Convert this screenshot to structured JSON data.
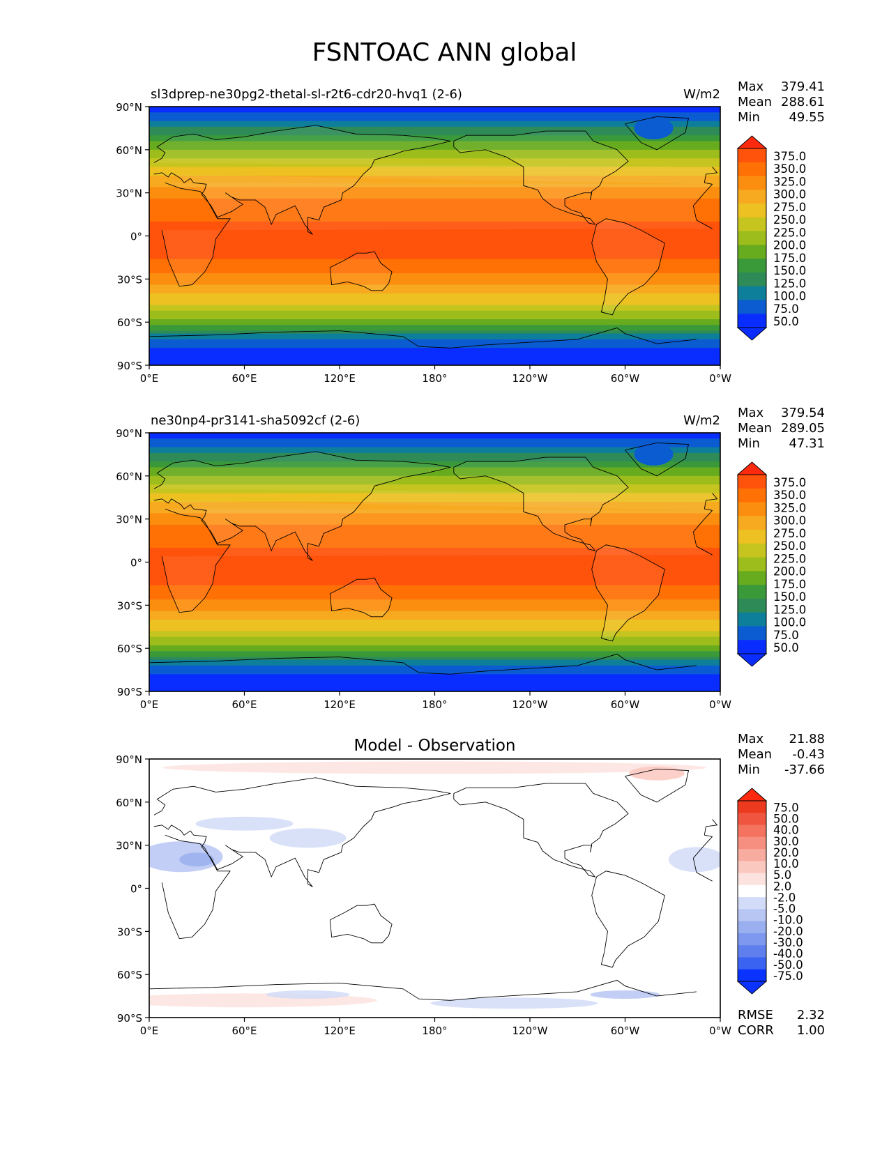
{
  "figure": {
    "title": "FSNTOAC ANN global"
  },
  "lon_ticks": [
    "0°E",
    "60°E",
    "120°E",
    "180°",
    "120°W",
    "60°W",
    "0°W"
  ],
  "lat_ticks": [
    "90°N",
    "60°N",
    "30°N",
    "0°",
    "30°S",
    "60°S",
    "90°S"
  ],
  "panels": [
    {
      "title_left": "sl3dprep-ne30pg2-thetal-sl-r2t6-cdr20-hvq1 (2-6)",
      "title_center": "",
      "units": "W/m2",
      "stats": [
        {
          "label": "Max",
          "value": "379.41"
        },
        {
          "label": "Mean",
          "value": "288.61"
        },
        {
          "label": "Min",
          "value": "49.55"
        }
      ],
      "colorbar_labels": [
        "375.0",
        "350.0",
        "325.0",
        "300.0",
        "275.0",
        "250.0",
        "225.0",
        "200.0",
        "175.0",
        "150.0",
        "125.0",
        "100.0",
        "75.0",
        "50.0"
      ],
      "extra_stats": []
    },
    {
      "title_left": "ne30np4-pr3141-sha5092cf (2-6)",
      "title_center": "",
      "units": "W/m2",
      "stats": [
        {
          "label": "Max",
          "value": "379.54"
        },
        {
          "label": "Mean",
          "value": "289.05"
        },
        {
          "label": "Min",
          "value": "47.31"
        }
      ],
      "colorbar_labels": [
        "375.0",
        "350.0",
        "325.0",
        "300.0",
        "275.0",
        "250.0",
        "225.0",
        "200.0",
        "175.0",
        "150.0",
        "125.0",
        "100.0",
        "75.0",
        "50.0"
      ],
      "extra_stats": []
    },
    {
      "title_left": "",
      "title_center": "Model - Observation",
      "units": "",
      "stats": [
        {
          "label": "Max",
          "value": "21.88"
        },
        {
          "label": "Mean",
          "value": "-0.43"
        },
        {
          "label": "Min",
          "value": "-37.66"
        }
      ],
      "colorbar_labels": [
        "75.0",
        "50.0",
        "40.0",
        "30.0",
        "20.0",
        "10.0",
        "5.0",
        "2.0",
        "-2.0",
        "-5.0",
        "-10.0",
        "-20.0",
        "-30.0",
        "-40.0",
        "-50.0",
        "-75.0"
      ],
      "extra_stats": [
        {
          "label": "RMSE",
          "value": "2.32"
        },
        {
          "label": "CORR",
          "value": "1.00"
        }
      ]
    }
  ],
  "chart_data": [
    {
      "type": "heatmap",
      "title": "sl3dprep-ne30pg2-thetal-sl-r2t6-cdr20-hvq1 (2-6)",
      "units": "W/m2",
      "xlabel": "",
      "ylabel": "",
      "x_ticks": [
        "0°E",
        "60°E",
        "120°E",
        "180°",
        "120°W",
        "60°W",
        "0°W"
      ],
      "y_ticks": [
        "90°N",
        "60°N",
        "30°N",
        "0°",
        "30°S",
        "60°S",
        "90°S"
      ],
      "xlim": [
        0,
        360
      ],
      "ylim": [
        -90,
        90
      ],
      "zonal_profile": {
        "lat": [
          90,
          75,
          60,
          45,
          30,
          15,
          0,
          -15,
          -30,
          -45,
          -60,
          -75,
          -90
        ],
        "value": [
          60,
          125,
          200,
          265,
          315,
          345,
          360,
          350,
          315,
          260,
          190,
          80,
          50
        ]
      },
      "levels": [
        50,
        75,
        100,
        125,
        150,
        175,
        200,
        225,
        250,
        275,
        300,
        325,
        350,
        375
      ],
      "colors": [
        "#0a2dff",
        "#0b5bd1",
        "#0e7f9a",
        "#2e8b57",
        "#3a9a3a",
        "#67ab1e",
        "#9cbd1c",
        "#c6c520",
        "#ecc121",
        "#f7a91f",
        "#fc8e0f",
        "#ff7005",
        "#ff520a",
        "#fe2a10"
      ],
      "stats": {
        "Max": 379.41,
        "Mean": 288.61,
        "Min": 49.55
      }
    },
    {
      "type": "heatmap",
      "title": "ne30np4-pr3141-sha5092cf (2-6)",
      "units": "W/m2",
      "xlabel": "",
      "ylabel": "",
      "x_ticks": [
        "0°E",
        "60°E",
        "120°E",
        "180°",
        "120°W",
        "60°W",
        "0°W"
      ],
      "y_ticks": [
        "90°N",
        "60°N",
        "30°N",
        "0°",
        "30°S",
        "60°S",
        "90°S"
      ],
      "xlim": [
        0,
        360
      ],
      "ylim": [
        -90,
        90
      ],
      "zonal_profile": {
        "lat": [
          90,
          75,
          60,
          45,
          30,
          15,
          0,
          -15,
          -30,
          -45,
          -60,
          -75,
          -90
        ],
        "value": [
          60,
          125,
          200,
          265,
          315,
          345,
          362,
          350,
          315,
          260,
          190,
          80,
          50
        ]
      },
      "levels": [
        50,
        75,
        100,
        125,
        150,
        175,
        200,
        225,
        250,
        275,
        300,
        325,
        350,
        375
      ],
      "colors": [
        "#0a2dff",
        "#0b5bd1",
        "#0e7f9a",
        "#2e8b57",
        "#3a9a3a",
        "#67ab1e",
        "#9cbd1c",
        "#c6c520",
        "#ecc121",
        "#f7a91f",
        "#fc8e0f",
        "#ff7005",
        "#ff520a",
        "#fe2a10"
      ],
      "stats": {
        "Max": 379.54,
        "Mean": 289.05,
        "Min": 47.31
      }
    },
    {
      "type": "heatmap",
      "title": "Model - Observation",
      "xlabel": "",
      "ylabel": "",
      "x_ticks": [
        "0°E",
        "60°E",
        "120°E",
        "180°",
        "120°W",
        "60°W",
        "0°W"
      ],
      "y_ticks": [
        "90°N",
        "60°N",
        "30°N",
        "0°",
        "30°S",
        "60°S",
        "90°S"
      ],
      "xlim": [
        0,
        360
      ],
      "ylim": [
        -90,
        90
      ],
      "levels": [
        -75,
        -50,
        -40,
        -30,
        -20,
        -10,
        -5,
        -2,
        2,
        5,
        10,
        20,
        30,
        40,
        50,
        75
      ],
      "colors": [
        "#0a33ff",
        "#3b63f2",
        "#5f7fee",
        "#7e98ef",
        "#9aafef",
        "#b7c6f3",
        "#d2dcf8",
        "#ffffff",
        "#fde3df",
        "#fbc8bf",
        "#f8ab9f",
        "#f68f7f",
        "#f3735f",
        "#f0563f",
        "#ed3a1f",
        "#fe2a10"
      ],
      "stats": {
        "Max": 21.88,
        "Mean": -0.43,
        "Min": -37.66,
        "RMSE": 2.32,
        "CORR": 1.0
      }
    }
  ]
}
